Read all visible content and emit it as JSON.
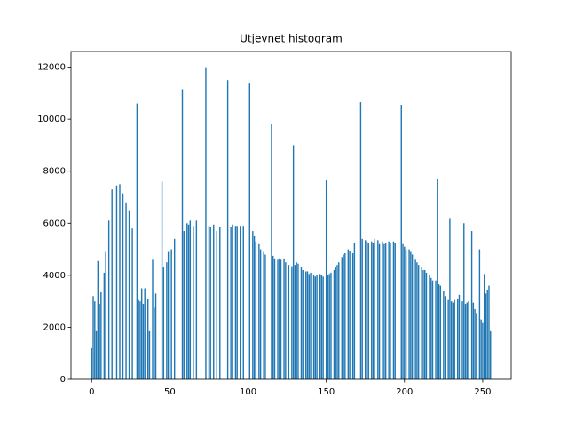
{
  "chart_data": {
    "type": "bar",
    "title": "Utjevnet histogram",
    "x": [
      0,
      1,
      2,
      3,
      4,
      5,
      6,
      7,
      8,
      9,
      10,
      11,
      12,
      13,
      14,
      15,
      16,
      17,
      18,
      19,
      20,
      21,
      22,
      23,
      24,
      25,
      26,
      27,
      28,
      29,
      30,
      31,
      32,
      33,
      34,
      35,
      36,
      37,
      38,
      39,
      40,
      41,
      42,
      43,
      44,
      45,
      46,
      47,
      48,
      49,
      50,
      51,
      52,
      53,
      54,
      55,
      56,
      57,
      58,
      59,
      60,
      61,
      62,
      63,
      64,
      65,
      66,
      67,
      68,
      69,
      70,
      71,
      72,
      73,
      74,
      75,
      76,
      77,
      78,
      79,
      80,
      81,
      82,
      83,
      84,
      85,
      86,
      87,
      88,
      89,
      90,
      91,
      92,
      93,
      94,
      95,
      96,
      97,
      98,
      99,
      100,
      101,
      102,
      103,
      104,
      105,
      106,
      107,
      108,
      109,
      110,
      111,
      112,
      113,
      114,
      115,
      116,
      117,
      118,
      119,
      120,
      121,
      122,
      123,
      124,
      125,
      126,
      127,
      128,
      129,
      130,
      131,
      132,
      133,
      134,
      135,
      136,
      137,
      138,
      139,
      140,
      141,
      142,
      143,
      144,
      145,
      146,
      147,
      148,
      149,
      150,
      151,
      152,
      153,
      154,
      155,
      156,
      157,
      158,
      159,
      160,
      161,
      162,
      163,
      164,
      165,
      166,
      167,
      168,
      169,
      170,
      171,
      172,
      173,
      174,
      175,
      176,
      177,
      178,
      179,
      180,
      181,
      182,
      183,
      184,
      185,
      186,
      187,
      188,
      189,
      190,
      191,
      192,
      193,
      194,
      195,
      196,
      197,
      198,
      199,
      200,
      201,
      202,
      203,
      204,
      205,
      206,
      207,
      208,
      209,
      210,
      211,
      212,
      213,
      214,
      215,
      216,
      217,
      218,
      219,
      220,
      221,
      222,
      223,
      224,
      225,
      226,
      227,
      228,
      229,
      230,
      231,
      232,
      233,
      234,
      235,
      236,
      237,
      238,
      239,
      240,
      241,
      242,
      243,
      244,
      245,
      246,
      247,
      248,
      249,
      250,
      251,
      252,
      253,
      254,
      255
    ],
    "values": [
      1200,
      3200,
      3000,
      1850,
      4550,
      2900,
      3350,
      0,
      4100,
      4900,
      0,
      6100,
      0,
      7300,
      0,
      0,
      7450,
      0,
      7500,
      0,
      7150,
      0,
      6800,
      0,
      6500,
      0,
      5800,
      0,
      0,
      10600,
      3050,
      3000,
      3500,
      2900,
      3500,
      0,
      3100,
      1850,
      0,
      4600,
      2750,
      3300,
      0,
      0,
      0,
      7600,
      4300,
      0,
      4500,
      4900,
      0,
      5000,
      0,
      5400,
      0,
      0,
      0,
      0,
      11150,
      5700,
      0,
      6000,
      5950,
      6100,
      0,
      5900,
      0,
      6100,
      0,
      0,
      0,
      0,
      0,
      12000,
      0,
      5900,
      5850,
      0,
      5950,
      0,
      5700,
      0,
      5850,
      0,
      0,
      0,
      0,
      11500,
      0,
      5850,
      5950,
      0,
      5900,
      5900,
      0,
      5900,
      0,
      5900,
      0,
      0,
      0,
      11400,
      0,
      5700,
      5500,
      5300,
      0,
      5200,
      5000,
      0,
      4900,
      4800,
      0,
      0,
      0,
      9800,
      4750,
      4650,
      0,
      4600,
      4650,
      4600,
      0,
      4650,
      4500,
      0,
      4400,
      0,
      4350,
      9000,
      4400,
      4500,
      4450,
      0,
      4300,
      4200,
      0,
      4150,
      4150,
      4050,
      4100,
      0,
      4000,
      3950,
      4000,
      0,
      4050,
      4000,
      3950,
      0,
      7650,
      4000,
      4050,
      4100,
      0,
      4200,
      4300,
      4400,
      4500,
      0,
      4700,
      4800,
      4850,
      0,
      5000,
      4950,
      0,
      4850,
      5250,
      0,
      0,
      0,
      10650,
      5400,
      0,
      5350,
      5300,
      5250,
      0,
      5300,
      5250,
      5400,
      0,
      5350,
      5200,
      0,
      5300,
      5200,
      5250,
      0,
      5300,
      5250,
      0,
      5300,
      5250,
      0,
      0,
      0,
      10550,
      5200,
      5100,
      5000,
      0,
      5000,
      4900,
      4800,
      0,
      4600,
      4500,
      4400,
      0,
      4300,
      4200,
      4200,
      4100,
      0,
      4000,
      3900,
      3800,
      0,
      3800,
      7700,
      3650,
      3600,
      0,
      3400,
      3200,
      0,
      3050,
      6200,
      3000,
      2950,
      3050,
      0,
      3100,
      3250,
      0,
      3000,
      6000,
      2900,
      2950,
      3000,
      0,
      5700,
      2950,
      2700,
      2550,
      0,
      5000,
      2300,
      2200,
      4050,
      3300,
      3450,
      3600,
      1850
    ],
    "color": "#1f77b4",
    "xlim": [
      -13.2,
      268.2
    ],
    "xticks": [
      0,
      50,
      100,
      150,
      200,
      250
    ],
    "ylim": [
      0,
      12600
    ],
    "yticks": [
      0,
      2000,
      4000,
      6000,
      8000,
      10000,
      12000
    ]
  }
}
